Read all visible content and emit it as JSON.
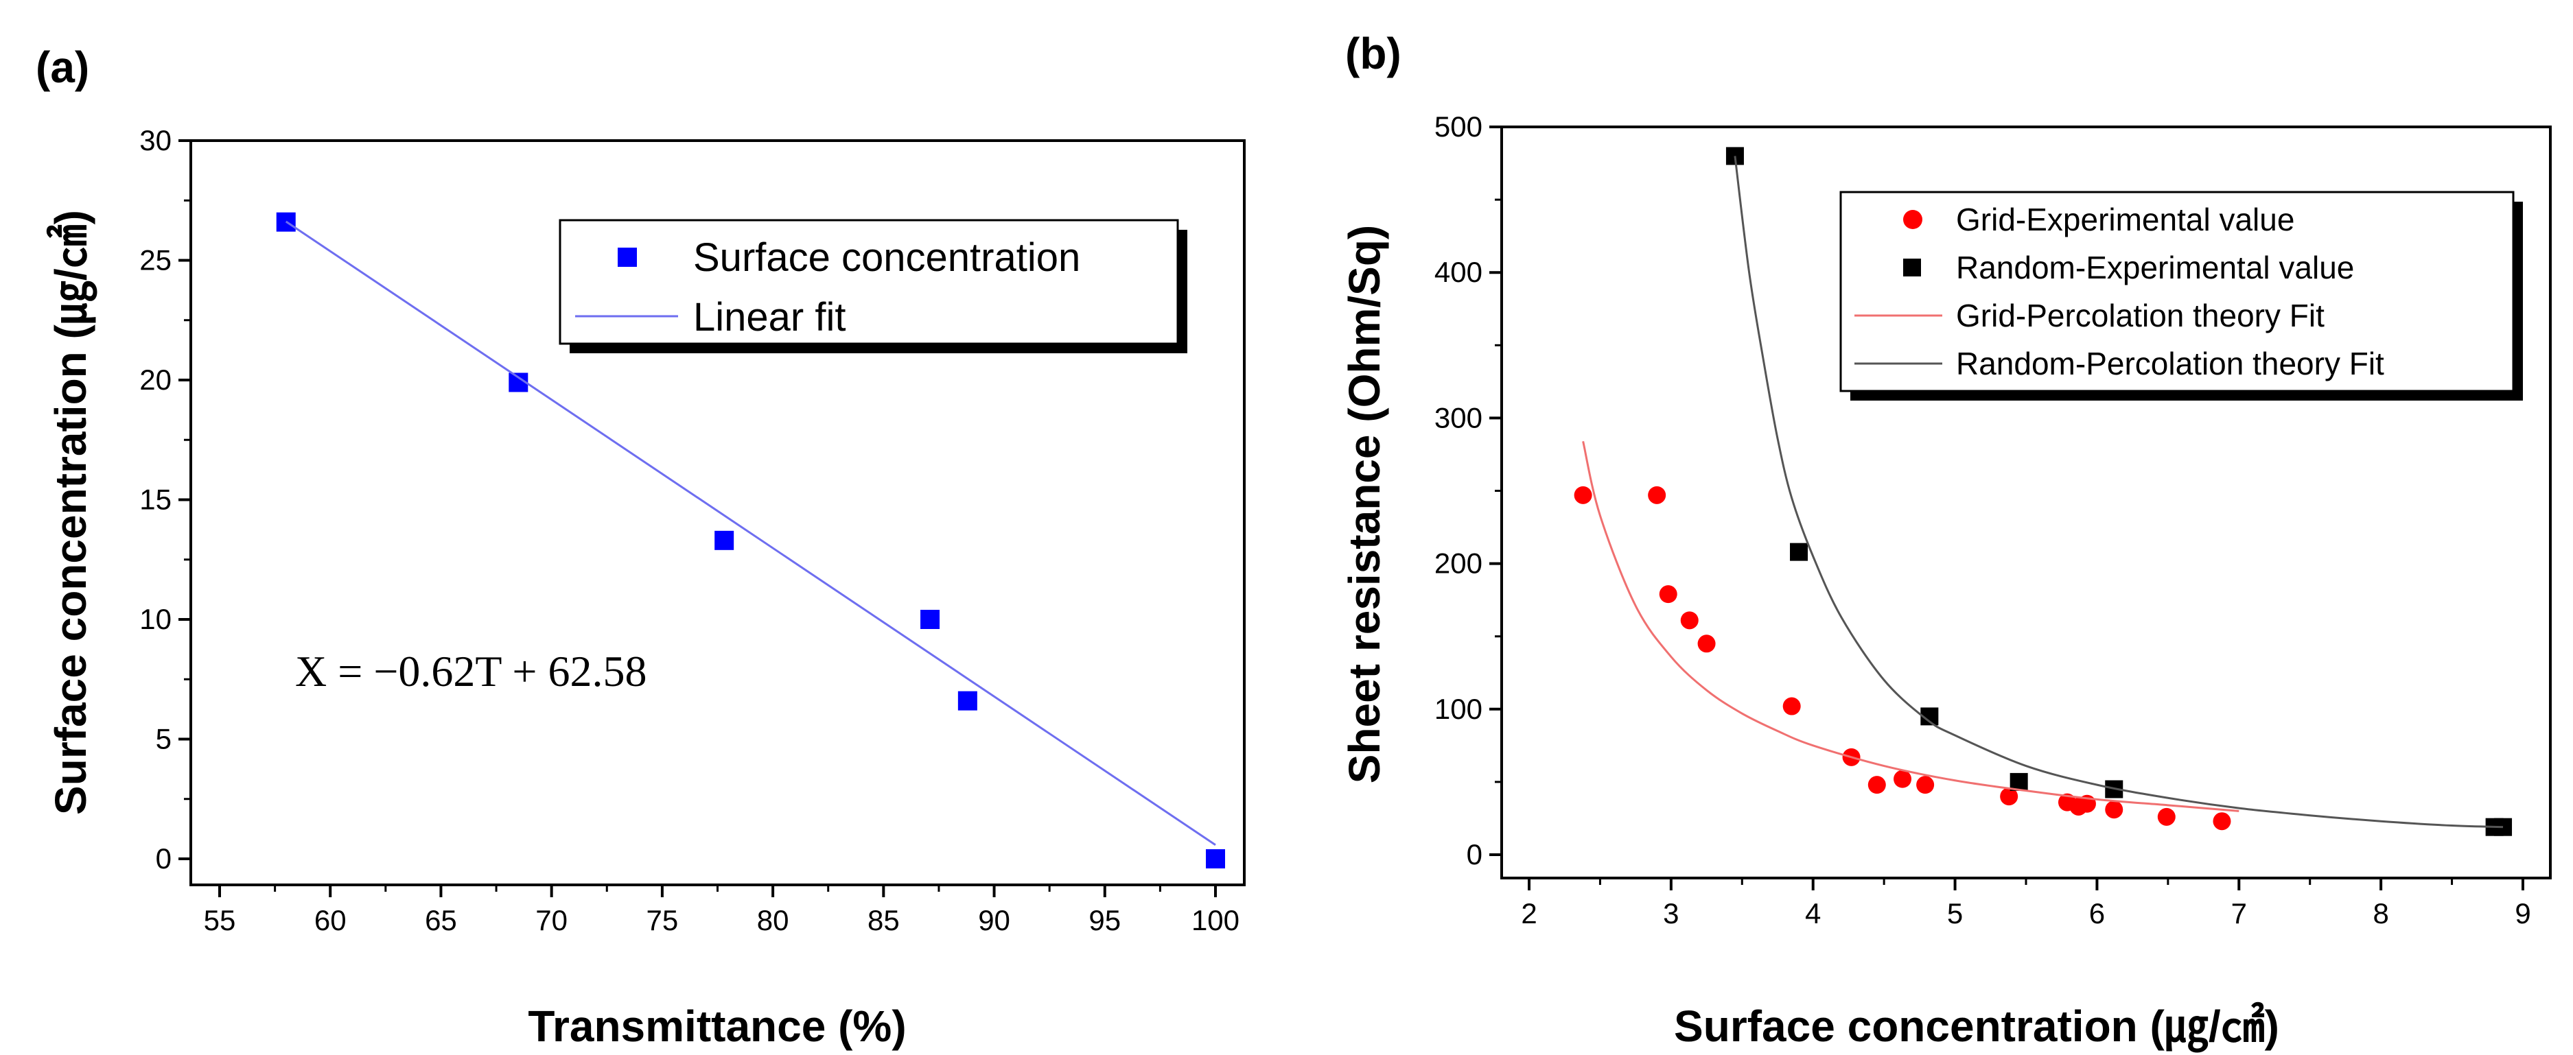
{
  "chart_data": [
    {
      "panel": "(a)",
      "type": "scatter",
      "xlabel": "Transmittance (%)",
      "ylabel": "Surface concentration (㎍/㎠)",
      "xlim": [
        55,
        100
      ],
      "ylim": [
        0,
        30
      ],
      "xticks": [
        55,
        60,
        65,
        70,
        75,
        80,
        85,
        90,
        95,
        100
      ],
      "yticks": [
        0,
        5,
        10,
        15,
        20,
        25,
        30
      ],
      "series": [
        {
          "name": "Surface concentration",
          "kind": "points",
          "color": "#0000ff",
          "marker": "square",
          "x": [
            58,
            68.5,
            77.8,
            87.1,
            88.8,
            100
          ],
          "y": [
            26.6,
            19.9,
            13.3,
            10.0,
            6.6,
            0.0
          ]
        },
        {
          "name": "Linear fit",
          "kind": "line",
          "color": "#6e6ef0",
          "x": [
            58,
            100
          ],
          "y": [
            26.62,
            0.58
          ]
        }
      ],
      "annotation": "X = −0.62T + 62.58",
      "legend": [
        "Surface concentration",
        "Linear fit"
      ]
    },
    {
      "panel": "(b)",
      "type": "scatter",
      "xlabel": "Surface concentration (㎍/㎠)",
      "ylabel": "Sheet resistance (Ohm/Sq)",
      "xlim": [
        2,
        9
      ],
      "ylim": [
        0,
        500
      ],
      "xticks": [
        2,
        3,
        4,
        5,
        6,
        7,
        8,
        9
      ],
      "yticks": [
        0,
        100,
        200,
        300,
        400,
        500
      ],
      "series": [
        {
          "name": "Grid-Experimental value",
          "kind": "points",
          "color": "#ff0000",
          "marker": "circle",
          "x": [
            2.38,
            2.9,
            2.98,
            3.13,
            3.25,
            3.85,
            4.27,
            4.45,
            4.63,
            4.79,
            5.38,
            5.79,
            5.87,
            5.93,
            6.12,
            6.49,
            6.88
          ],
          "y": [
            247,
            247,
            179,
            161,
            145,
            102,
            67,
            48,
            52,
            48,
            40,
            36,
            33,
            35,
            31,
            26,
            23
          ]
        },
        {
          "name": "Random-Experimental value",
          "kind": "points",
          "color": "#000000",
          "marker": "square",
          "x": [
            3.45,
            3.9,
            4.82,
            5.45,
            6.12,
            8.8,
            8.86
          ],
          "y": [
            480,
            208,
            95,
            50,
            45,
            19,
            19
          ]
        },
        {
          "name": "Grid-Percolation theory Fit",
          "kind": "curve",
          "color": "#f07070",
          "x": [
            2.38,
            2.5,
            2.75,
            3.0,
            3.25,
            3.5,
            3.75,
            4.0,
            4.5,
            5.0,
            5.5,
            6.0,
            6.5,
            7.0
          ],
          "y": [
            284,
            233,
            171,
            136,
            113,
            97,
            85,
            75,
            61,
            51,
            44,
            38,
            34,
            30
          ]
        },
        {
          "name": "Random-Percolation theory Fit",
          "kind": "curve",
          "color": "#555555",
          "x": [
            3.45,
            3.55,
            3.65,
            3.75,
            3.85,
            4.0,
            4.2,
            4.5,
            4.8,
            5.0,
            5.5,
            6.0,
            6.5,
            7.0,
            7.5,
            8.0,
            8.5,
            8.86
          ],
          "y": [
            480,
            400,
            340,
            286,
            245,
            205,
            163,
            120,
            93,
            82,
            61,
            48,
            39,
            32,
            27,
            23,
            20,
            19
          ]
        }
      ],
      "legend": [
        "Grid-Experimental value",
        "Random-Experimental value",
        "Grid-Percolation theory Fit",
        "Random-Percolation theory Fit"
      ]
    }
  ]
}
